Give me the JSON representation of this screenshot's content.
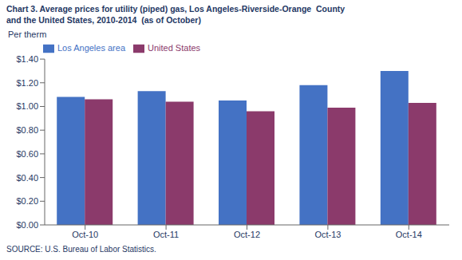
{
  "chart_data": {
    "type": "bar",
    "title": "Chart 3. Average prices for utility (piped) gas, Los Angeles-Riverside-Orange  County",
    "subtitle": "and the United States, 2010-2014  (as of October)",
    "ylabel": "Per therm",
    "source": "SOURCE: U.S. Bureau of Labor Statistics.",
    "categories": [
      "Oct-10",
      "Oct-11",
      "Oct-12",
      "Oct-13",
      "Oct-14"
    ],
    "series": [
      {
        "name": "Los Angeles area",
        "color": "#4472C4",
        "values": [
          1.08,
          1.13,
          1.05,
          1.18,
          1.3
        ]
      },
      {
        "name": "United States",
        "color": "#8B3A6B",
        "values": [
          1.06,
          1.04,
          0.96,
          0.99,
          1.03
        ]
      }
    ],
    "ylim": [
      0.0,
      1.4
    ],
    "yticks": [
      {
        "value": 0.0,
        "label": "$0.00"
      },
      {
        "value": 0.2,
        "label": "$0.20"
      },
      {
        "value": 0.4,
        "label": "$0.40"
      },
      {
        "value": 0.6,
        "label": "$0.60"
      },
      {
        "value": 0.8,
        "label": "$0.80"
      },
      {
        "value": 1.0,
        "label": "$1.00"
      },
      {
        "value": 1.2,
        "label": "$1.20"
      },
      {
        "value": 1.4,
        "label": "$1.40"
      }
    ],
    "grid": false,
    "legend": "upper left"
  }
}
